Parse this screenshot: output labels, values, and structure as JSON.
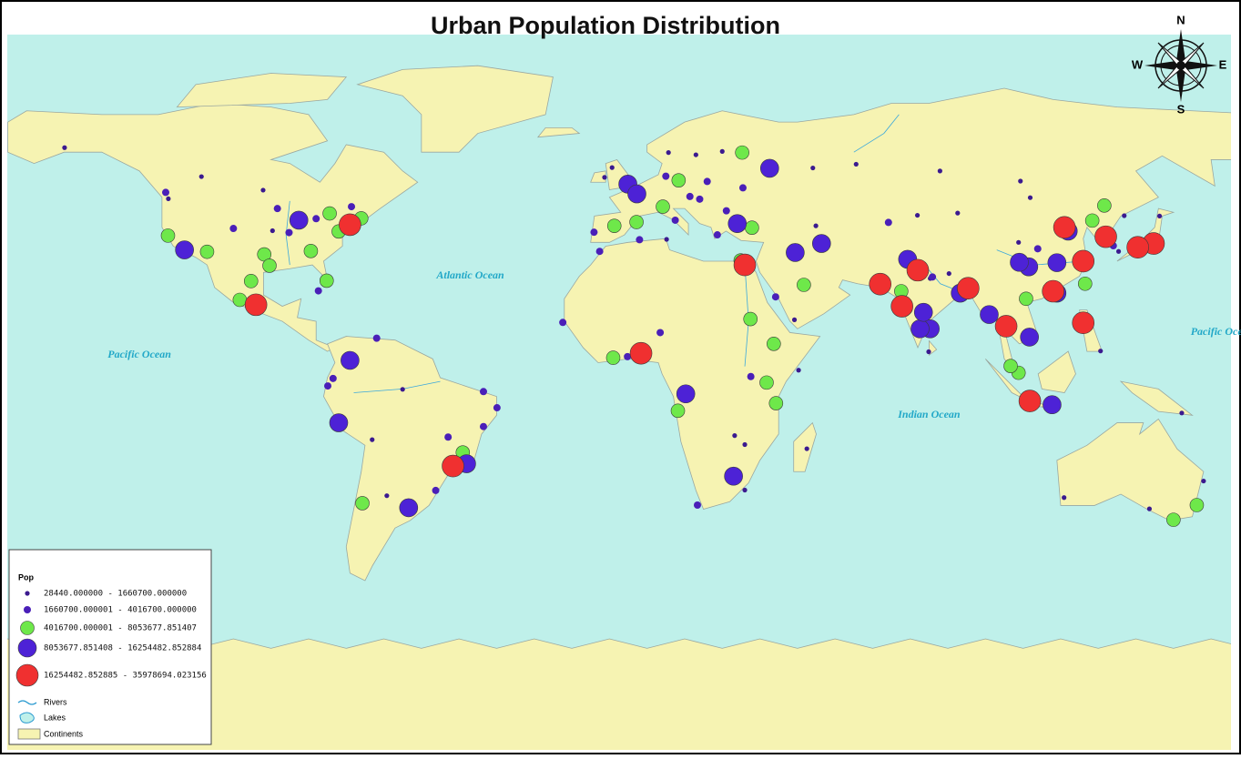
{
  "title": "Urban Population Distribution",
  "compass": {
    "n": "N",
    "e": "E",
    "s": "S",
    "w": "W"
  },
  "oceans": [
    "Pacific Ocean",
    "Atlantic Ocean",
    "Indian Ocean",
    "Pacific Ocean"
  ],
  "legend": {
    "title": "Pop",
    "classes": [
      {
        "label": "28440.000000 - 1660700.000000",
        "color": "#3b1a8f"
      },
      {
        "label": "1660700.000001 - 4016700.000000",
        "color": "#4a1fb8"
      },
      {
        "label": "4016700.000001 - 8053677.851407",
        "color": "#6ee84a"
      },
      {
        "label": "8053677.851408 - 16254482.852884",
        "color": "#4d22d6"
      },
      {
        "label": "16254482.852885 - 35978694.023156",
        "color": "#f03030"
      }
    ],
    "layers": [
      "Rivers",
      "Lakes",
      "Continents"
    ]
  },
  "cities": [
    {
      "lon": -74,
      "lat": 40.7,
      "class": 4
    },
    {
      "lon": -99,
      "lat": 19.4,
      "class": 4
    },
    {
      "lon": -46.6,
      "lat": -23.5,
      "class": 4
    },
    {
      "lon": 31,
      "lat": 30,
      "class": 4
    },
    {
      "lon": 3.4,
      "lat": 6.5,
      "class": 4
    },
    {
      "lon": 67,
      "lat": 24.9,
      "class": 4
    },
    {
      "lon": 72.8,
      "lat": 19,
      "class": 4
    },
    {
      "lon": 77,
      "lat": 28.6,
      "class": 4
    },
    {
      "lon": 90.4,
      "lat": 23.8,
      "class": 4
    },
    {
      "lon": 116,
      "lat": 40,
      "class": 4
    },
    {
      "lon": 121,
      "lat": 31,
      "class": 4
    },
    {
      "lon": 127,
      "lat": 37.5,
      "class": 4
    },
    {
      "lon": 139.7,
      "lat": 35.7,
      "class": 4
    },
    {
      "lon": 135.5,
      "lat": 34.7,
      "class": 4
    },
    {
      "lon": 121,
      "lat": 14.6,
      "class": 4
    },
    {
      "lon": 106.8,
      "lat": -6.2,
      "class": 4
    },
    {
      "lon": 100.5,
      "lat": 13.7,
      "class": 4
    },
    {
      "lon": 113,
      "lat": 23,
      "class": 4
    },
    {
      "lon": -118,
      "lat": 34,
      "class": 3
    },
    {
      "lon": -87.6,
      "lat": 41.9,
      "class": 3
    },
    {
      "lon": -74,
      "lat": 4.6,
      "class": 3
    },
    {
      "lon": -77,
      "lat": -12,
      "class": 3
    },
    {
      "lon": -58.4,
      "lat": -34.6,
      "class": 3
    },
    {
      "lon": -43,
      "lat": -22.9,
      "class": 3
    },
    {
      "lon": -0.1,
      "lat": 51.5,
      "class": 3
    },
    {
      "lon": 2.3,
      "lat": 48.9,
      "class": 3
    },
    {
      "lon": 37.6,
      "lat": 55.7,
      "class": 3
    },
    {
      "lon": 29,
      "lat": 41,
      "class": 3
    },
    {
      "lon": 51.4,
      "lat": 35.7,
      "class": 3
    },
    {
      "lon": 15.3,
      "lat": -4.3,
      "class": 3
    },
    {
      "lon": 28,
      "lat": -26.2,
      "class": 3
    },
    {
      "lon": 74.3,
      "lat": 31.5,
      "class": 3
    },
    {
      "lon": 80.3,
      "lat": 13,
      "class": 3
    },
    {
      "lon": 77.6,
      "lat": 13,
      "class": 3
    },
    {
      "lon": 78.5,
      "lat": 17.4,
      "class": 3
    },
    {
      "lon": 106.7,
      "lat": 10.8,
      "class": 3
    },
    {
      "lon": 114,
      "lat": 30.6,
      "class": 3
    },
    {
      "lon": 106.5,
      "lat": 29.5,
      "class": 3
    },
    {
      "lon": 117,
      "lat": 39,
      "class": 3
    },
    {
      "lon": 114,
      "lat": 22.5,
      "class": 3
    },
    {
      "lon": 104,
      "lat": 30.7,
      "class": 3
    },
    {
      "lon": 112.7,
      "lat": -7.2,
      "class": 3
    },
    {
      "lon": 96,
      "lat": 16.8,
      "class": 3
    },
    {
      "lon": 44.4,
      "lat": 33.3,
      "class": 3
    },
    {
      "lon": 88.3,
      "lat": 22.5,
      "class": 3
    },
    {
      "lon": -79.4,
      "lat": 43.7,
      "class": 2
    },
    {
      "lon": -75,
      "lat": 40,
      "class": 2
    },
    {
      "lon": -77,
      "lat": 38.9,
      "class": 2
    },
    {
      "lon": -71,
      "lat": 42.4,
      "class": 2
    },
    {
      "lon": -96.8,
      "lat": 32.8,
      "class": 2
    },
    {
      "lon": -95.4,
      "lat": 29.8,
      "class": 2
    },
    {
      "lon": -80.2,
      "lat": 25.8,
      "class": 2
    },
    {
      "lon": -84.4,
      "lat": 33.7,
      "class": 2
    },
    {
      "lon": -122.4,
      "lat": 37.8,
      "class": 2
    },
    {
      "lon": -112,
      "lat": 33.5,
      "class": 2
    },
    {
      "lon": -103.3,
      "lat": 20.7,
      "class": 2
    },
    {
      "lon": -100.3,
      "lat": 25.7,
      "class": 2
    },
    {
      "lon": -70.7,
      "lat": -33.4,
      "class": 2
    },
    {
      "lon": -44,
      "lat": -19.9,
      "class": 2
    },
    {
      "lon": -3.7,
      "lat": 40.4,
      "class": 2
    },
    {
      "lon": 2.2,
      "lat": 41.4,
      "class": 2
    },
    {
      "lon": 9.2,
      "lat": 45.5,
      "class": 2
    },
    {
      "lon": 13.4,
      "lat": 52.5,
      "class": 2
    },
    {
      "lon": 30.3,
      "lat": 59.9,
      "class": 2
    },
    {
      "lon": 32.9,
      "lat": 39.9,
      "class": 2
    },
    {
      "lon": 46.7,
      "lat": 24.7,
      "class": 2
    },
    {
      "lon": 32.5,
      "lat": 15.6,
      "class": 2
    },
    {
      "lon": 13.2,
      "lat": -8.8,
      "class": 2
    },
    {
      "lon": 36.8,
      "lat": -1.3,
      "class": 2
    },
    {
      "lon": 39.3,
      "lat": -6.8,
      "class": 2
    },
    {
      "lon": -4,
      "lat": 5.3,
      "class": 2
    },
    {
      "lon": 72.6,
      "lat": 23,
      "class": 2
    },
    {
      "lon": 73.8,
      "lat": 18.5,
      "class": 2
    },
    {
      "lon": 103.8,
      "lat": 1.3,
      "class": 2
    },
    {
      "lon": 101.7,
      "lat": 3.1,
      "class": 2
    },
    {
      "lon": 114.2,
      "lat": 22.3,
      "class": 2
    },
    {
      "lon": 123.4,
      "lat": 41.8,
      "class": 2
    },
    {
      "lon": 126.6,
      "lat": 45.8,
      "class": 2
    },
    {
      "lon": 151.2,
      "lat": -33.9,
      "class": 2
    },
    {
      "lon": 145,
      "lat": -37.8,
      "class": 2
    },
    {
      "lon": 121.5,
      "lat": 25,
      "class": 2
    },
    {
      "lon": 29.9,
      "lat": 31.2,
      "class": 2
    },
    {
      "lon": 38.7,
      "lat": 9,
      "class": 2
    },
    {
      "lon": 105.8,
      "lat": 21,
      "class": 2
    },
    {
      "lon": -122.3,
      "lat": 47.6,
      "class": 0
    },
    {
      "lon": -123,
      "lat": 49.3,
      "class": 1
    },
    {
      "lon": -105,
      "lat": 39.7,
      "class": 1
    },
    {
      "lon": -93.3,
      "lat": 45,
      "class": 1
    },
    {
      "lon": -90.2,
      "lat": 38.6,
      "class": 1
    },
    {
      "lon": -94.6,
      "lat": 39.1,
      "class": 0
    },
    {
      "lon": -83,
      "lat": 42.3,
      "class": 1
    },
    {
      "lon": -73.6,
      "lat": 45.5,
      "class": 1
    },
    {
      "lon": -82.4,
      "lat": 23.1,
      "class": 1
    },
    {
      "lon": -66.9,
      "lat": 10.5,
      "class": 1
    },
    {
      "lon": -78.5,
      "lat": -0.2,
      "class": 1
    },
    {
      "lon": -79.9,
      "lat": -2.2,
      "class": 1
    },
    {
      "lon": -34.9,
      "lat": -8,
      "class": 1
    },
    {
      "lon": -38.5,
      "lat": -3.7,
      "class": 1
    },
    {
      "lon": -38.5,
      "lat": -13,
      "class": 1
    },
    {
      "lon": -47.9,
      "lat": -15.8,
      "class": 1
    },
    {
      "lon": -60,
      "lat": -3.1,
      "class": 0
    },
    {
      "lon": -51.2,
      "lat": -30,
      "class": 1
    },
    {
      "lon": -64.2,
      "lat": -31.4,
      "class": 0
    },
    {
      "lon": -68.1,
      "lat": -16.5,
      "class": 0
    },
    {
      "lon": -17.4,
      "lat": 14.7,
      "class": 1
    },
    {
      "lon": -0.2,
      "lat": 5.6,
      "class": 1
    },
    {
      "lon": 8.5,
      "lat": 12,
      "class": 1
    },
    {
      "lon": -7.6,
      "lat": 33.6,
      "class": 1
    },
    {
      "lon": 3,
      "lat": 36.7,
      "class": 1
    },
    {
      "lon": 10.2,
      "lat": 36.8,
      "class": 0
    },
    {
      "lon": 12.5,
      "lat": 41.9,
      "class": 1
    },
    {
      "lon": 23.7,
      "lat": 38,
      "class": 1
    },
    {
      "lon": 21,
      "lat": 52.2,
      "class": 1
    },
    {
      "lon": 30.5,
      "lat": 50.5,
      "class": 1
    },
    {
      "lon": 18,
      "lat": 59.3,
      "class": 0
    },
    {
      "lon": 10.7,
      "lat": 59.9,
      "class": 0
    },
    {
      "lon": 25,
      "lat": 60.2,
      "class": 0
    },
    {
      "lon": 49.1,
      "lat": 55.8,
      "class": 0
    },
    {
      "lon": 60.6,
      "lat": 56.8,
      "class": 0
    },
    {
      "lon": 82.9,
      "lat": 55,
      "class": 0
    },
    {
      "lon": 76.9,
      "lat": 43.2,
      "class": 0
    },
    {
      "lon": 69.2,
      "lat": 41.3,
      "class": 1
    },
    {
      "lon": 49.9,
      "lat": 40.4,
      "class": 0
    },
    {
      "lon": 39.2,
      "lat": 21.5,
      "class": 1
    },
    {
      "lon": 44.2,
      "lat": 15.4,
      "class": 0
    },
    {
      "lon": 45.3,
      "lat": 2,
      "class": 0
    },
    {
      "lon": 32.6,
      "lat": 0.3,
      "class": 1
    },
    {
      "lon": 28.3,
      "lat": -15.4,
      "class": 0
    },
    {
      "lon": 31,
      "lat": -17.8,
      "class": 0
    },
    {
      "lon": 18.4,
      "lat": -33.9,
      "class": 1
    },
    {
      "lon": 31,
      "lat": -29.9,
      "class": 0
    },
    {
      "lon": 47.5,
      "lat": -18.9,
      "class": 0
    },
    {
      "lon": 79.9,
      "lat": 6.9,
      "class": 0
    },
    {
      "lon": 85.3,
      "lat": 27.7,
      "class": 0
    },
    {
      "lon": 80.9,
      "lat": 26.8,
      "class": 1
    },
    {
      "lon": 80.3,
      "lat": 26.4,
      "class": 0
    },
    {
      "lon": 108.9,
      "lat": 34.3,
      "class": 1
    },
    {
      "lon": 103.8,
      "lat": 36,
      "class": 0
    },
    {
      "lon": 87.6,
      "lat": 43.8,
      "class": 0
    },
    {
      "lon": 131.9,
      "lat": 43.1,
      "class": 0
    },
    {
      "lon": 125.7,
      "lat": 39,
      "class": 1
    },
    {
      "lon": 115.9,
      "lat": -31.9,
      "class": 0
    },
    {
      "lon": 153,
      "lat": -27.5,
      "class": 0
    },
    {
      "lon": 138.6,
      "lat": -34.9,
      "class": 0
    },
    {
      "lon": 104.3,
      "lat": 52.3,
      "class": 0
    },
    {
      "lon": 106.9,
      "lat": 47.9,
      "class": 0
    },
    {
      "lon": 129,
      "lat": 35.1,
      "class": 1
    },
    {
      "lon": 130.4,
      "lat": 33.6,
      "class": 0
    },
    {
      "lon": 141.3,
      "lat": 43,
      "class": 0
    },
    {
      "lon": 125.6,
      "lat": 7.1,
      "class": 0
    },
    {
      "lon": 147.2,
      "lat": -9.4,
      "class": 0
    },
    {
      "lon": -149.9,
      "lat": 61.2,
      "class": 0
    },
    {
      "lon": -113.5,
      "lat": 53.5,
      "class": 0
    },
    {
      "lon": -97.1,
      "lat": 49.9,
      "class": 0
    },
    {
      "lon": -9.1,
      "lat": 38.7,
      "class": 1
    },
    {
      "lon": -6.3,
      "lat": 53.3,
      "class": 0
    },
    {
      "lon": -4.3,
      "lat": 55.9,
      "class": 0
    },
    {
      "lon": 10,
      "lat": 53.6,
      "class": 1
    },
    {
      "lon": 16.4,
      "lat": 48.2,
      "class": 1
    },
    {
      "lon": 19,
      "lat": 47.5,
      "class": 1
    },
    {
      "lon": 26.1,
      "lat": 44.4,
      "class": 1
    }
  ]
}
